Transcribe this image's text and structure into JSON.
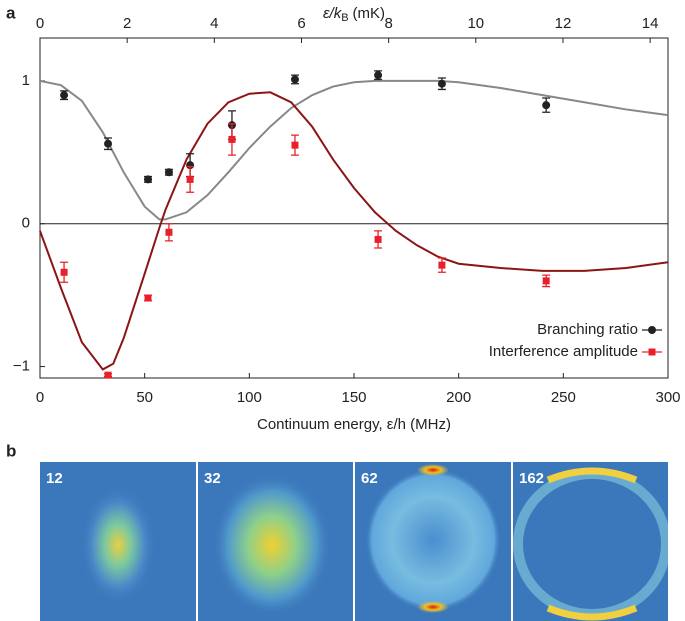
{
  "chart_data": {
    "type": "scatter",
    "panel_label": "a",
    "x_label": "Continuum energy, ε/h (MHz)",
    "x2_label": {
      "main": "ε/k",
      "sub": "B",
      "unit": "(mK)"
    },
    "xlim": [
      0,
      300
    ],
    "xticks": [
      0,
      50,
      100,
      150,
      200,
      250,
      300
    ],
    "x2lim": [
      0,
      14.41
    ],
    "x2ticks": [
      0,
      2,
      4,
      6,
      8,
      10,
      12,
      14
    ],
    "ylim": [
      -1.08,
      1.3
    ],
    "yticks": [
      {
        "value": -1,
        "label": "−1"
      },
      0,
      1
    ],
    "legend": "lower right",
    "x": [
      11.5,
      32.5,
      51.6,
      61.6,
      71.7,
      91.7,
      121.8,
      161.5,
      192,
      241.8
    ],
    "series": [
      {
        "name": "Branching ratio",
        "color": "#222222",
        "marker": "circle",
        "values": [
          0.9,
          0.56,
          0.31,
          0.36,
          0.41,
          0.69,
          1.01,
          1.04,
          0.98,
          0.83
        ],
        "errors": [
          0.03,
          0.04,
          0.02,
          0.02,
          0.08,
          0.1,
          0.03,
          0.03,
          0.04,
          0.05
        ]
      },
      {
        "name": "Interference amplitude",
        "color": "#e8202a",
        "marker": "square",
        "values": [
          -0.34,
          -1.06,
          -0.52,
          -0.06,
          0.31,
          0.59,
          0.55,
          -0.11,
          -0.29,
          -0.4
        ],
        "errors": [
          0.07,
          0.01,
          0.02,
          0.06,
          0.09,
          0.11,
          0.07,
          0.06,
          0.05,
          0.04
        ]
      }
    ],
    "fit_x": [
      0,
      10,
      20,
      30,
      35,
      40,
      50,
      57,
      60,
      70,
      80,
      90,
      100,
      110,
      120,
      130,
      140,
      150,
      160,
      170,
      180,
      190,
      200,
      220,
      240,
      260,
      280,
      300
    ],
    "fits": [
      {
        "color": "#888888",
        "values": [
          1.0,
          0.97,
          0.86,
          0.64,
          0.5,
          0.36,
          0.12,
          0.03,
          0.03,
          0.08,
          0.2,
          0.36,
          0.53,
          0.68,
          0.81,
          0.9,
          0.96,
          0.99,
          1.0,
          1.0,
          1.0,
          1.0,
          0.99,
          0.95,
          0.9,
          0.85,
          0.8,
          0.76
        ]
      },
      {
        "color": "#8b1515",
        "values": [
          -0.05,
          -0.45,
          -0.83,
          -1.02,
          -0.98,
          -0.8,
          -0.35,
          -0.03,
          0.1,
          0.45,
          0.7,
          0.85,
          0.91,
          0.92,
          0.85,
          0.68,
          0.45,
          0.25,
          0.08,
          -0.05,
          -0.15,
          -0.23,
          -0.28,
          -0.31,
          -0.33,
          -0.33,
          -0.31,
          -0.27
        ]
      }
    ]
  },
  "panel_b": {
    "panel_label": "b",
    "image_labels": [
      "12",
      "32",
      "62",
      "162"
    ]
  }
}
